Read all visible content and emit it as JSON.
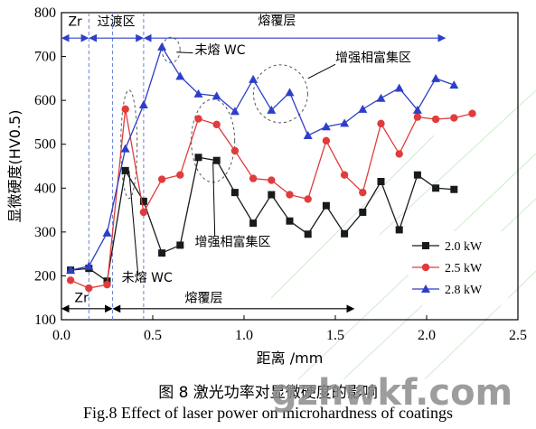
{
  "chart_data": {
    "type": "line",
    "title": "",
    "xlabel": "距离 /mm",
    "ylabel": "显微硬度(HV0.5)",
    "xlim": [
      0.0,
      2.5
    ],
    "ylim": [
      100,
      800
    ],
    "xticks": [
      0.0,
      0.5,
      1.0,
      1.5,
      2.0,
      2.5
    ],
    "xtick_labels": [
      "0.0",
      "0.5",
      "1.0",
      "1.5",
      "2.0",
      "2.5"
    ],
    "yticks": [
      100,
      200,
      300,
      400,
      500,
      600,
      700,
      800
    ],
    "ytick_labels": [
      "100",
      "200",
      "300",
      "400",
      "500",
      "600",
      "700",
      "800"
    ],
    "legend_position": "bottom-right",
    "series": [
      {
        "name": "2.0 kW",
        "color": "#1a1a1a",
        "marker": "square",
        "x": [
          0.05,
          0.15,
          0.25,
          0.35,
          0.45,
          0.55,
          0.65,
          0.75,
          0.85,
          0.95,
          1.05,
          1.15,
          1.25,
          1.35,
          1.45,
          1.55,
          1.65,
          1.75,
          1.85,
          1.95,
          2.05,
          2.15
        ],
        "y": [
          213,
          217,
          188,
          440,
          370,
          252,
          270,
          470,
          463,
          390,
          320,
          385,
          325,
          295,
          360,
          296,
          345,
          415,
          305,
          430,
          400,
          397
        ]
      },
      {
        "name": "2.5 kW",
        "color": "#e03c3c",
        "marker": "circle",
        "x": [
          0.05,
          0.15,
          0.25,
          0.35,
          0.45,
          0.55,
          0.65,
          0.75,
          0.85,
          0.95,
          1.05,
          1.15,
          1.25,
          1.35,
          1.45,
          1.55,
          1.65,
          1.75,
          1.85,
          1.95,
          2.05,
          2.15,
          2.25
        ],
        "y": [
          190,
          172,
          180,
          580,
          345,
          420,
          430,
          558,
          545,
          485,
          422,
          418,
          385,
          375,
          508,
          430,
          390,
          547,
          478,
          562,
          557,
          560,
          570
        ]
      },
      {
        "name": "2.8 kW",
        "color": "#2d3fc8",
        "marker": "triangle",
        "x": [
          0.05,
          0.15,
          0.25,
          0.35,
          0.45,
          0.55,
          0.65,
          0.75,
          0.85,
          0.95,
          1.05,
          1.15,
          1.25,
          1.35,
          1.45,
          1.55,
          1.65,
          1.75,
          1.85,
          1.95,
          2.05,
          2.15
        ],
        "y": [
          213,
          222,
          298,
          490,
          590,
          722,
          655,
          615,
          610,
          575,
          648,
          578,
          618,
          520,
          540,
          548,
          580,
          605,
          628,
          578,
          650,
          635
        ]
      }
    ],
    "annotations": {
      "top_zr": "Zr",
      "top_transition": "过渡区",
      "top_cladding": "熔覆层",
      "unmelted_wc_top": "未熔 WC",
      "enriched_top": "增强相富集区",
      "enriched_bottom": "增强相富集区",
      "unmelted_wc_bottom": "未熔 WC",
      "bottom_zr": "Zr",
      "bottom_cladding": "熔覆层"
    },
    "boundaries_x": [
      0.15,
      0.28,
      0.45
    ]
  },
  "caption_zh": "图 8  激光功率对显微硬度的影响",
  "caption_en": "Fig.8  Effect of laser power on microhardness of coatings",
  "watermark": "gzhwkf.com"
}
